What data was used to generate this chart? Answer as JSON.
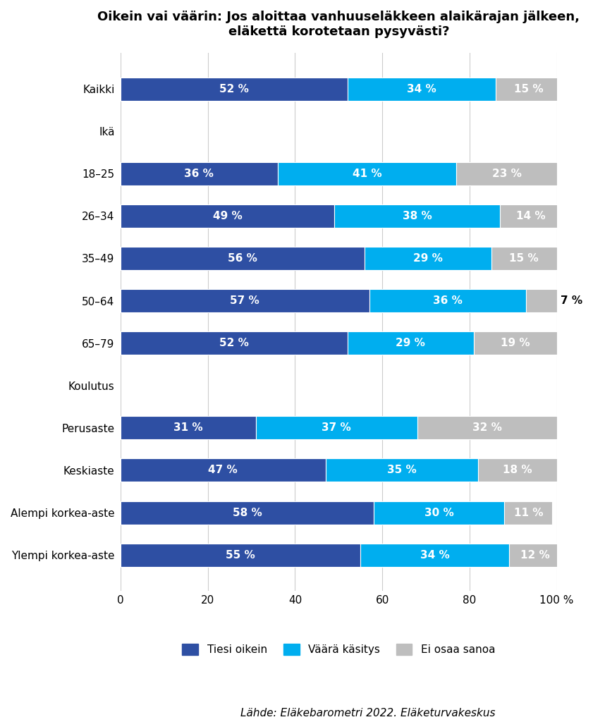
{
  "title": "Oikein vai väärin: Jos aloittaa vanhuuseläkkeen alaikärajan jälkeen,\neläkettä korotetaan pysyvästi?",
  "categories": [
    "Kaikki",
    "Ikä",
    "18–25",
    "26–34",
    "35–49",
    "50–64",
    "65–79",
    "Koulutus",
    "Perusaste",
    "Keskiaste",
    "Alempi korkea-aste",
    "Ylempi korkea-aste"
  ],
  "is_header": [
    false,
    true,
    false,
    false,
    false,
    false,
    false,
    true,
    false,
    false,
    false,
    false
  ],
  "values": [
    [
      52,
      34,
      15
    ],
    [
      null,
      null,
      null
    ],
    [
      36,
      41,
      23
    ],
    [
      49,
      38,
      14
    ],
    [
      56,
      29,
      15
    ],
    [
      57,
      36,
      7
    ],
    [
      52,
      29,
      19
    ],
    [
      null,
      null,
      null
    ],
    [
      31,
      37,
      32
    ],
    [
      47,
      35,
      18
    ],
    [
      58,
      30,
      11
    ],
    [
      55,
      34,
      12
    ]
  ],
  "colors": [
    "#2E4FA3",
    "#00AEEF",
    "#BEBEBE"
  ],
  "legend_labels": [
    "Tiesi oikein",
    "Väärä käsitys",
    "Ei osaa sanoa"
  ],
  "source": "Lähde: Eläkebarometri 2022. Eläketurvakeskus",
  "xlim": [
    0,
    100
  ],
  "xticks": [
    0,
    20,
    40,
    60,
    80,
    100
  ],
  "xticklabels": [
    "0",
    "20",
    "40",
    "60",
    "80",
    "100 %"
  ],
  "bar_height": 0.55,
  "figsize": [
    8.41,
    10.24
  ],
  "dpi": 100,
  "title_fontsize": 13,
  "tick_fontsize": 11,
  "bar_label_fontsize": 11,
  "source_fontsize": 11,
  "legend_fontsize": 11,
  "small_val_threshold": 10
}
